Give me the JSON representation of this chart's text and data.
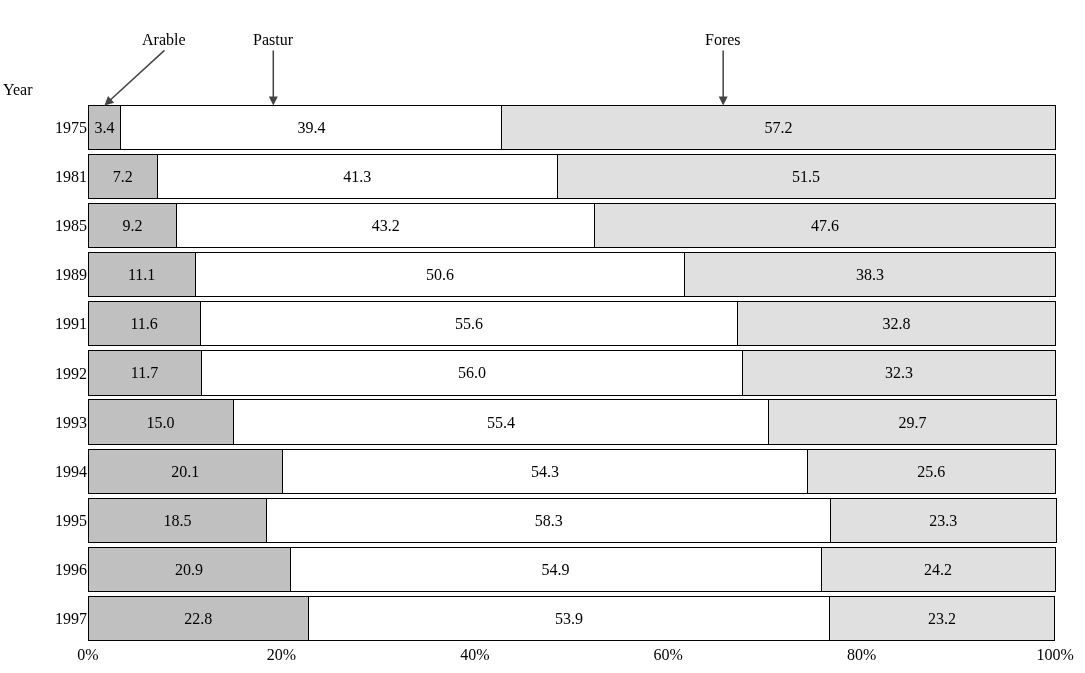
{
  "chart_data": {
    "type": "bar",
    "orientation": "horizontal",
    "stacked": true,
    "ylabel": "Year",
    "categories": [
      "1975",
      "1981",
      "1985",
      "1989",
      "1991",
      "1992",
      "1993",
      "1994",
      "1995",
      "1996",
      "1997"
    ],
    "series": [
      {
        "name": "Arable",
        "color": "#c0c0c0",
        "values": [
          3.4,
          7.2,
          9.2,
          11.1,
          11.6,
          11.7,
          15.0,
          20.1,
          18.5,
          20.9,
          22.8
        ],
        "value_labels": [
          "3.4",
          "7.2",
          "9.2",
          "11.1",
          "11.6",
          "11.7",
          "15.0",
          "20.1",
          "18.5",
          "20.9",
          "22.8"
        ]
      },
      {
        "name": "Pastur",
        "color": "#ffffff",
        "values": [
          39.4,
          41.3,
          43.2,
          50.6,
          55.6,
          56.0,
          55.4,
          54.3,
          58.3,
          54.9,
          53.9
        ],
        "value_labels": [
          "39.4",
          "41.3",
          "43.2",
          "50.6",
          "55.6",
          "56.0",
          "55.4",
          "54.3",
          "58.3",
          "54.9",
          "53.9"
        ]
      },
      {
        "name": "Fores",
        "color": "#e0e0e0",
        "values": [
          57.2,
          51.5,
          47.6,
          38.3,
          32.8,
          32.3,
          29.7,
          25.6,
          23.3,
          24.2,
          23.2
        ],
        "value_labels": [
          "57.2",
          "51.5",
          "47.6",
          "38.3",
          "32.8",
          "32.3",
          "29.7",
          "25.6",
          "23.3",
          "24.2",
          "23.2"
        ]
      }
    ],
    "xlim": [
      0,
      100.2
    ],
    "xticks": [
      {
        "value": 0,
        "label": "0%"
      },
      {
        "value": 20,
        "label": "20%"
      },
      {
        "value": 40,
        "label": "40%"
      },
      {
        "value": 60,
        "label": "60%"
      },
      {
        "value": 80,
        "label": "80%"
      },
      {
        "value": 100,
        "label": "100%"
      }
    ],
    "grid": false,
    "legend": false
  }
}
